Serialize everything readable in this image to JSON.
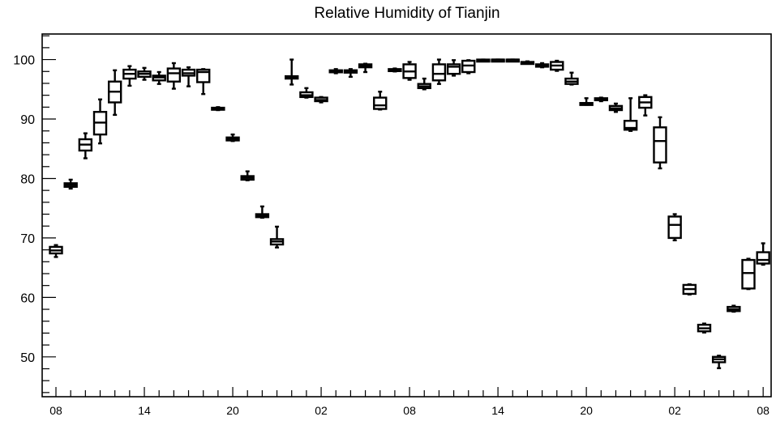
{
  "chart_data": {
    "type": "box",
    "title": "Relative Humidity of Tianjin",
    "xlabel": "",
    "ylabel": "",
    "ylim": [
      43.3,
      104.3
    ],
    "yticks": [
      50,
      60,
      70,
      80,
      90,
      100
    ],
    "xlim": [
      0,
      48
    ],
    "xticks": [
      {
        "x": 0,
        "label": "08"
      },
      {
        "x": 6,
        "label": "14"
      },
      {
        "x": 12,
        "label": "20"
      },
      {
        "x": 18,
        "label": "02"
      },
      {
        "x": 24,
        "label": "08"
      },
      {
        "x": 30,
        "label": "14"
      },
      {
        "x": 36,
        "label": "20"
      },
      {
        "x": 42,
        "label": "02"
      },
      {
        "x": 48,
        "label": "08"
      }
    ],
    "boxes": [
      {
        "x": 0,
        "min": 66.8,
        "q1": 67.4,
        "median": 67.9,
        "q3": 68.5,
        "max": 68.8
      },
      {
        "x": 1,
        "min": 78.3,
        "q1": 78.6,
        "median": 78.9,
        "q3": 79.2,
        "max": 79.8
      },
      {
        "x": 2,
        "min": 83.4,
        "q1": 84.7,
        "median": 85.7,
        "q3": 86.6,
        "max": 87.6
      },
      {
        "x": 3,
        "min": 85.9,
        "q1": 87.4,
        "median": 89.4,
        "q3": 91.2,
        "max": 93.3
      },
      {
        "x": 4,
        "min": 90.7,
        "q1": 92.8,
        "median": 94.6,
        "q3": 96.3,
        "max": 98.2
      },
      {
        "x": 5,
        "min": 95.6,
        "q1": 96.8,
        "median": 97.6,
        "q3": 98.3,
        "max": 98.9
      },
      {
        "x": 6,
        "min": 96.6,
        "q1": 97.1,
        "median": 97.6,
        "q3": 98.0,
        "max": 98.6
      },
      {
        "x": 7,
        "min": 95.9,
        "q1": 96.5,
        "median": 97.0,
        "q3": 97.3,
        "max": 97.9
      },
      {
        "x": 8,
        "min": 95.1,
        "q1": 96.3,
        "median": 97.7,
        "q3": 98.5,
        "max": 99.4
      },
      {
        "x": 9,
        "min": 95.5,
        "q1": 97.3,
        "median": 97.7,
        "q3": 98.3,
        "max": 98.7
      },
      {
        "x": 10,
        "min": 94.2,
        "q1": 96.2,
        "median": 97.9,
        "q3": 98.3,
        "max": 98.4
      },
      {
        "x": 11,
        "min": 91.5,
        "q1": 91.6,
        "median": 91.7,
        "q3": 91.9,
        "max": 92.0
      },
      {
        "x": 12,
        "min": 86.3,
        "q1": 86.4,
        "median": 86.7,
        "q3": 86.9,
        "max": 87.4
      },
      {
        "x": 13,
        "min": 79.7,
        "q1": 79.8,
        "median": 80.1,
        "q3": 80.4,
        "max": 81.2
      },
      {
        "x": 14,
        "min": 73.4,
        "q1": 73.5,
        "median": 73.7,
        "q3": 74.0,
        "max": 75.3
      },
      {
        "x": 15,
        "min": 68.4,
        "q1": 68.9,
        "median": 69.4,
        "q3": 69.8,
        "max": 71.9
      },
      {
        "x": 16,
        "min": 95.8,
        "q1": 96.8,
        "median": 97.0,
        "q3": 97.2,
        "max": 100.0
      },
      {
        "x": 17,
        "min": 93.6,
        "q1": 93.7,
        "median": 94.0,
        "q3": 94.5,
        "max": 95.2
      },
      {
        "x": 18,
        "min": 92.8,
        "q1": 93.0,
        "median": 93.2,
        "q3": 93.6,
        "max": 93.7
      },
      {
        "x": 19,
        "min": 97.7,
        "q1": 97.9,
        "median": 98.1,
        "q3": 98.2,
        "max": 98.4
      },
      {
        "x": 20,
        "min": 97.1,
        "q1": 97.8,
        "median": 98.1,
        "q3": 98.2,
        "max": 98.4
      },
      {
        "x": 21,
        "min": 97.9,
        "q1": 98.7,
        "median": 98.9,
        "q3": 99.2,
        "max": 99.3
      },
      {
        "x": 22,
        "min": 91.6,
        "q1": 91.7,
        "median": 92.3,
        "q3": 93.6,
        "max": 94.6
      },
      {
        "x": 23,
        "min": 98.0,
        "q1": 98.1,
        "median": 98.3,
        "q3": 98.4,
        "max": 98.5
      },
      {
        "x": 24,
        "min": 96.6,
        "q1": 96.9,
        "median": 98.0,
        "q3": 99.2,
        "max": 99.6
      },
      {
        "x": 25,
        "min": 95.0,
        "q1": 95.2,
        "median": 95.5,
        "q3": 95.9,
        "max": 96.8
      },
      {
        "x": 26,
        "min": 95.9,
        "q1": 96.5,
        "median": 97.6,
        "q3": 99.2,
        "max": 100.0
      },
      {
        "x": 27,
        "min": 97.3,
        "q1": 97.6,
        "median": 98.8,
        "q3": 99.2,
        "max": 99.9
      },
      {
        "x": 28,
        "min": 97.7,
        "q1": 97.9,
        "median": 99.0,
        "q3": 99.8,
        "max": 99.9
      },
      {
        "x": 29,
        "min": 99.7,
        "q1": 99.8,
        "median": 99.9,
        "q3": 100.0,
        "max": 100.0
      },
      {
        "x": 30,
        "min": 99.8,
        "q1": 99.9,
        "median": 100.0,
        "q3": 100.0,
        "max": 100.0
      },
      {
        "x": 31,
        "min": 99.8,
        "q1": 99.9,
        "median": 100.0,
        "q3": 100.0,
        "max": 100.0
      },
      {
        "x": 32,
        "min": 99.3,
        "q1": 99.4,
        "median": 99.5,
        "q3": 99.6,
        "max": 99.7
      },
      {
        "x": 33,
        "min": 98.7,
        "q1": 98.8,
        "median": 99.0,
        "q3": 99.2,
        "max": 99.4
      },
      {
        "x": 34,
        "min": 98.1,
        "q1": 98.3,
        "median": 99.0,
        "q3": 99.6,
        "max": 99.8
      },
      {
        "x": 35,
        "min": 95.8,
        "q1": 95.9,
        "median": 96.3,
        "q3": 96.8,
        "max": 97.8
      },
      {
        "x": 36,
        "min": 92.4,
        "q1": 92.5,
        "median": 92.6,
        "q3": 92.7,
        "max": 93.5
      },
      {
        "x": 37,
        "min": 93.0,
        "q1": 93.2,
        "median": 93.4,
        "q3": 93.5,
        "max": 93.6
      },
      {
        "x": 38,
        "min": 91.2,
        "q1": 91.5,
        "median": 91.8,
        "q3": 92.2,
        "max": 92.6
      },
      {
        "x": 39,
        "min": 88.0,
        "q1": 88.2,
        "median": 88.5,
        "q3": 89.7,
        "max": 93.5
      },
      {
        "x": 40,
        "min": 90.6,
        "q1": 91.9,
        "median": 92.8,
        "q3": 93.7,
        "max": 94.0
      },
      {
        "x": 41,
        "min": 81.7,
        "q1": 82.7,
        "median": 86.3,
        "q3": 88.6,
        "max": 90.3
      },
      {
        "x": 42,
        "min": 69.6,
        "q1": 70.0,
        "median": 72.2,
        "q3": 73.6,
        "max": 74.0
      },
      {
        "x": 43,
        "min": 60.5,
        "q1": 60.6,
        "median": 61.4,
        "q3": 62.1,
        "max": 62.2
      },
      {
        "x": 44,
        "min": 54.1,
        "q1": 54.3,
        "median": 54.8,
        "q3": 55.4,
        "max": 55.6
      },
      {
        "x": 45,
        "min": 48.1,
        "q1": 49.1,
        "median": 49.6,
        "q3": 50.0,
        "max": 50.2
      },
      {
        "x": 46,
        "min": 57.6,
        "q1": 57.7,
        "median": 58.0,
        "q3": 58.4,
        "max": 58.6
      },
      {
        "x": 47,
        "min": 61.4,
        "q1": 61.5,
        "median": 64.1,
        "q3": 66.3,
        "max": 66.5
      },
      {
        "x": 48,
        "min": 65.5,
        "q1": 65.7,
        "median": 66.3,
        "q3": 67.6,
        "max": 69.1
      }
    ],
    "grid": false,
    "legend": "none"
  }
}
